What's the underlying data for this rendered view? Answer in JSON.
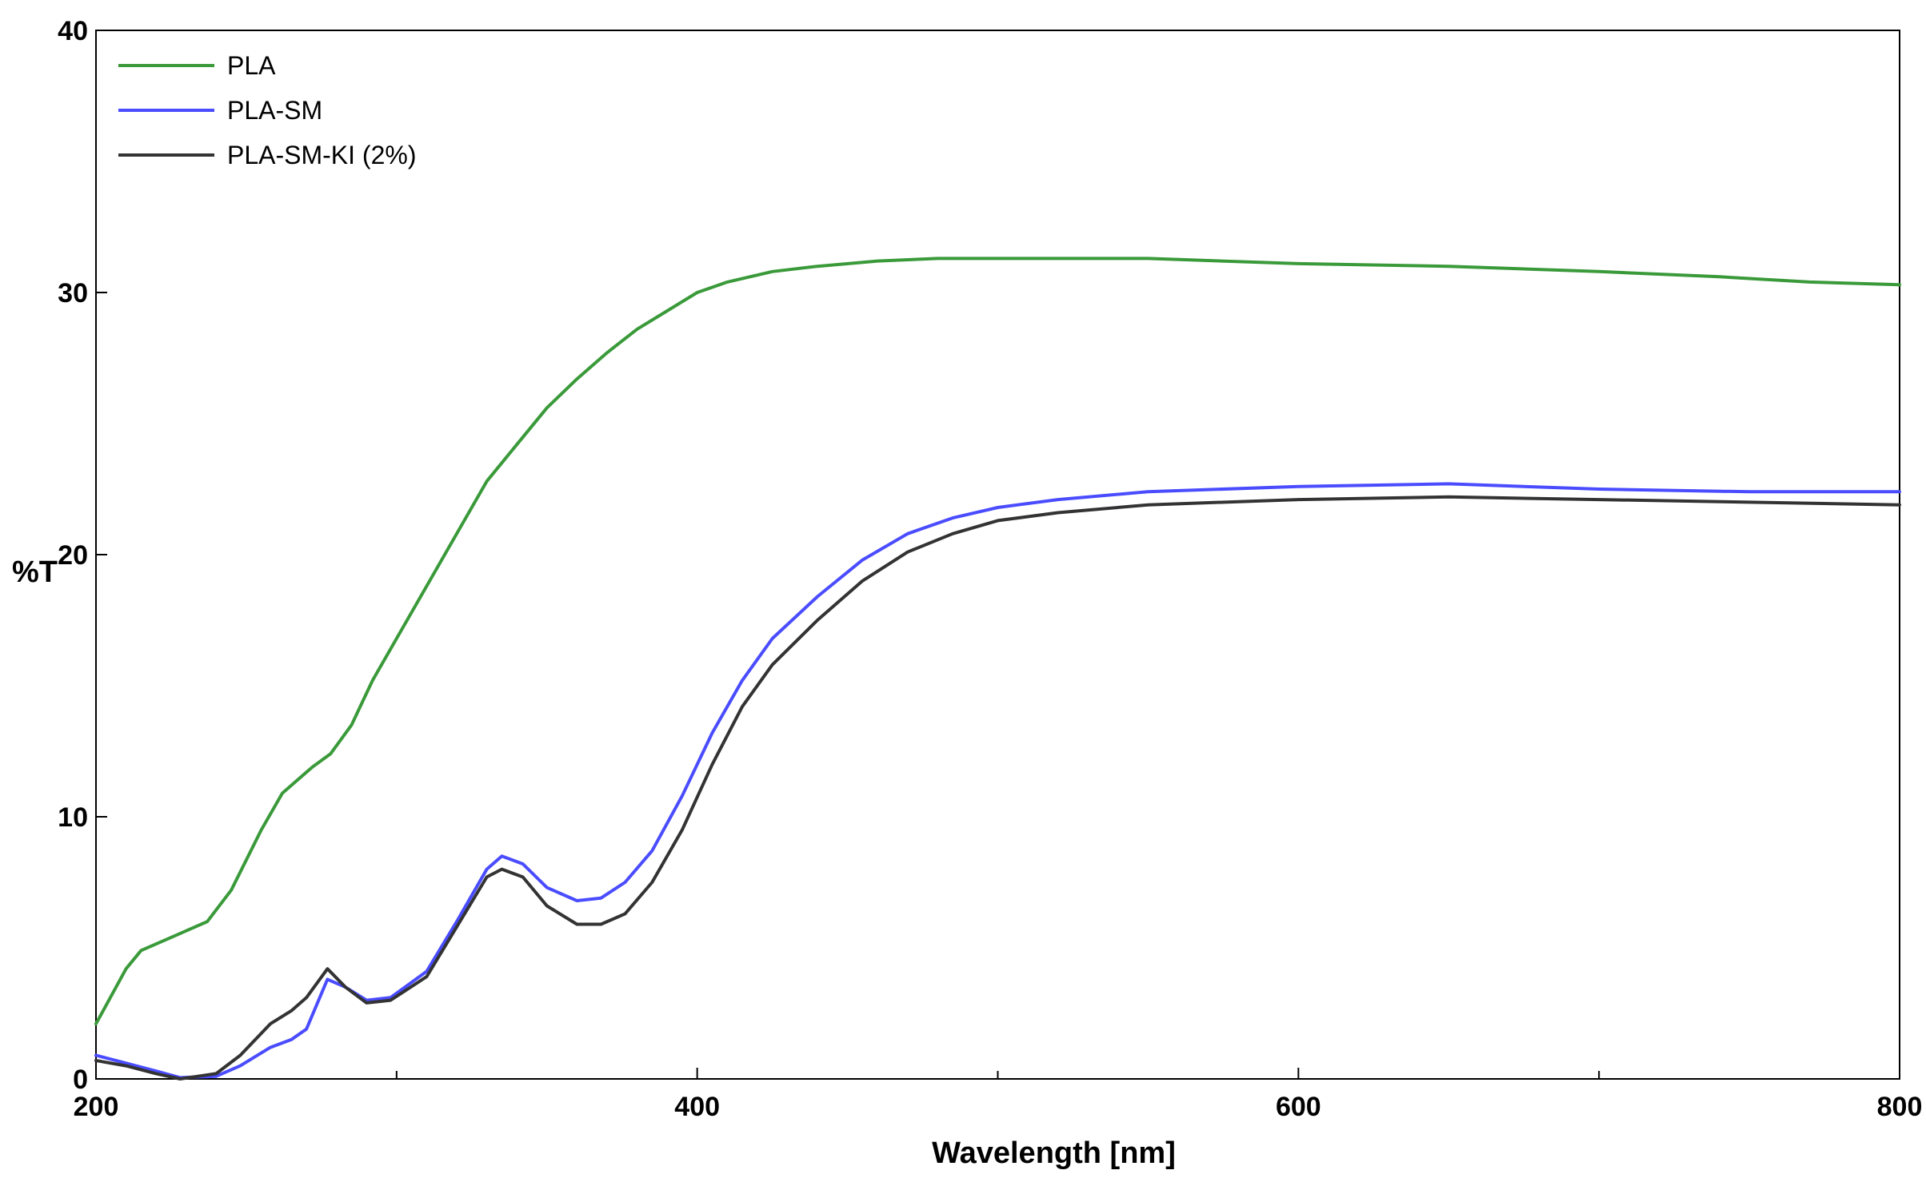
{
  "chart_data": {
    "type": "line",
    "title": "",
    "xlabel": "Wavelength [nm]",
    "ylabel": "%T",
    "xlim": [
      200,
      800
    ],
    "ylim": [
      0,
      40
    ],
    "x_ticks": [
      200,
      400,
      600,
      800
    ],
    "x_minor_ticks": [
      300,
      500,
      700
    ],
    "y_ticks": [
      0,
      10,
      20,
      30,
      40
    ],
    "grid": false,
    "legend_position": "top-left",
    "series": [
      {
        "name": "PLA",
        "color": "#3a9a3a",
        "points": [
          [
            200,
            2.1
          ],
          [
            210,
            4.2
          ],
          [
            215,
            4.9
          ],
          [
            225,
            5.4
          ],
          [
            237,
            6.0
          ],
          [
            245,
            7.2
          ],
          [
            255,
            9.5
          ],
          [
            262,
            10.9
          ],
          [
            272,
            11.9
          ],
          [
            278,
            12.4
          ],
          [
            285,
            13.5
          ],
          [
            292,
            15.2
          ],
          [
            300,
            16.8
          ],
          [
            315,
            19.8
          ],
          [
            330,
            22.8
          ],
          [
            340,
            24.2
          ],
          [
            350,
            25.6
          ],
          [
            360,
            26.7
          ],
          [
            370,
            27.7
          ],
          [
            380,
            28.6
          ],
          [
            390,
            29.3
          ],
          [
            400,
            30.0
          ],
          [
            410,
            30.4
          ],
          [
            425,
            30.8
          ],
          [
            440,
            31.0
          ],
          [
            460,
            31.2
          ],
          [
            480,
            31.3
          ],
          [
            500,
            31.3
          ],
          [
            550,
            31.3
          ],
          [
            600,
            31.1
          ],
          [
            650,
            31.0
          ],
          [
            700,
            30.8
          ],
          [
            740,
            30.6
          ],
          [
            770,
            30.4
          ],
          [
            800,
            30.3
          ]
        ]
      },
      {
        "name": "PLA-SM",
        "color": "#4a4cff",
        "points": [
          [
            200,
            0.9
          ],
          [
            210,
            0.6
          ],
          [
            220,
            0.3
          ],
          [
            228,
            0.05
          ],
          [
            240,
            0.1
          ],
          [
            248,
            0.5
          ],
          [
            258,
            1.2
          ],
          [
            265,
            1.5
          ],
          [
            270,
            1.9
          ],
          [
            277,
            3.8
          ],
          [
            283,
            3.5
          ],
          [
            290,
            3.0
          ],
          [
            298,
            3.1
          ],
          [
            310,
            4.1
          ],
          [
            320,
            6.0
          ],
          [
            330,
            8.0
          ],
          [
            335,
            8.5
          ],
          [
            342,
            8.2
          ],
          [
            350,
            7.3
          ],
          [
            360,
            6.8
          ],
          [
            368,
            6.9
          ],
          [
            376,
            7.5
          ],
          [
            385,
            8.7
          ],
          [
            395,
            10.8
          ],
          [
            405,
            13.2
          ],
          [
            415,
            15.2
          ],
          [
            425,
            16.8
          ],
          [
            440,
            18.4
          ],
          [
            455,
            19.8
          ],
          [
            470,
            20.8
          ],
          [
            485,
            21.4
          ],
          [
            500,
            21.8
          ],
          [
            520,
            22.1
          ],
          [
            550,
            22.4
          ],
          [
            600,
            22.6
          ],
          [
            650,
            22.7
          ],
          [
            700,
            22.5
          ],
          [
            750,
            22.4
          ],
          [
            800,
            22.4
          ]
        ]
      },
      {
        "name": "PLA-SM-KI (2%)",
        "color": "#333333",
        "points": [
          [
            200,
            0.7
          ],
          [
            210,
            0.5
          ],
          [
            220,
            0.2
          ],
          [
            228,
            0.0
          ],
          [
            240,
            0.2
          ],
          [
            248,
            0.9
          ],
          [
            258,
            2.1
          ],
          [
            265,
            2.6
          ],
          [
            270,
            3.1
          ],
          [
            277,
            4.2
          ],
          [
            283,
            3.5
          ],
          [
            290,
            2.9
          ],
          [
            298,
            3.0
          ],
          [
            310,
            3.9
          ],
          [
            320,
            5.8
          ],
          [
            330,
            7.7
          ],
          [
            335,
            8.0
          ],
          [
            342,
            7.7
          ],
          [
            350,
            6.6
          ],
          [
            360,
            5.9
          ],
          [
            368,
            5.9
          ],
          [
            376,
            6.3
          ],
          [
            385,
            7.5
          ],
          [
            395,
            9.5
          ],
          [
            405,
            12.0
          ],
          [
            415,
            14.2
          ],
          [
            425,
            15.8
          ],
          [
            440,
            17.5
          ],
          [
            455,
            19.0
          ],
          [
            470,
            20.1
          ],
          [
            485,
            20.8
          ],
          [
            500,
            21.3
          ],
          [
            520,
            21.6
          ],
          [
            550,
            21.9
          ],
          [
            600,
            22.1
          ],
          [
            650,
            22.2
          ],
          [
            700,
            22.1
          ],
          [
            750,
            22.0
          ],
          [
            800,
            21.9
          ]
        ]
      }
    ]
  }
}
